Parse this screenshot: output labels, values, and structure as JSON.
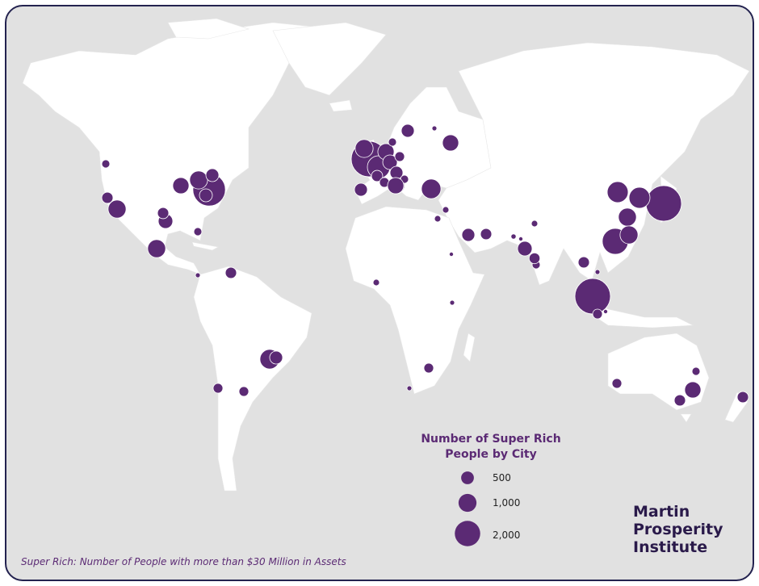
{
  "legend": {
    "title_line1": "Number of Super Rich",
    "title_line2": "People by City",
    "items": [
      {
        "label": "500",
        "value": 500
      },
      {
        "label": "1,000",
        "value": 1000
      },
      {
        "label": "2,000",
        "value": 2000
      }
    ]
  },
  "logo": {
    "line1": "Martin",
    "line2": "Prosperity",
    "line3": "Institute"
  },
  "footnote": "Super Rich: Number of People with more than $30 Million in Assets",
  "colors": {
    "bubble": "#5b2a74",
    "land": "#ffffff",
    "water": "#e1e1e1",
    "frame": "#23224f"
  },
  "bubbles": [
    4300,
    1750,
    3600,
    4300,
    2300,
    4300,
    1500,
    1500,
    1100,
    1100,
    900,
    1100,
    570,
    570,
    1100,
    430,
    220,
    720,
    430,
    220,
    1100,
    80,
    430,
    1300,
    570,
    320,
    320,
    900,
    570,
    80,
    570,
    900,
    1300,
    140,
    140,
    430,
    570,
    720,
    140,
    220,
    430,
    320,
    80,
    900,
    430,
    220,
    320,
    430,
    320,
    80,
    140,
    80,
    1100,
    900,
    720,
    570,
    430,
    320,
    320,
    220,
    220,
    900,
    400,
    90,
    60,
    60,
    60
  ]
}
